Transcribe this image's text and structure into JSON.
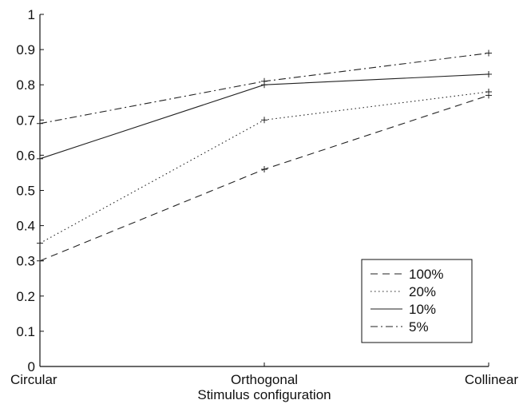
{
  "chart_data": {
    "type": "line",
    "title": "",
    "xlabel": "Stimulus configuration",
    "ylabel": "",
    "categories": [
      "Circular",
      "Orthogonal",
      "Collinear"
    ],
    "ylim": [
      0,
      1
    ],
    "yticks": [
      "0",
      "0.1",
      "0.2",
      "0.3",
      "0.4",
      "0.5",
      "0.6",
      "0.7",
      "0.8",
      "0.9",
      "1"
    ],
    "grid": false,
    "legend_position": "bottom-right",
    "series": [
      {
        "name": "100%",
        "values": [
          0.3,
          0.56,
          0.77
        ],
        "line_style": "dashed"
      },
      {
        "name": "20%",
        "values": [
          0.35,
          0.7,
          0.78
        ],
        "line_style": "dotted"
      },
      {
        "name": "10%",
        "values": [
          0.59,
          0.8,
          0.83
        ],
        "line_style": "solid"
      },
      {
        "name": "5%",
        "values": [
          0.69,
          0.81,
          0.89
        ],
        "line_style": "dash-dot"
      }
    ]
  }
}
